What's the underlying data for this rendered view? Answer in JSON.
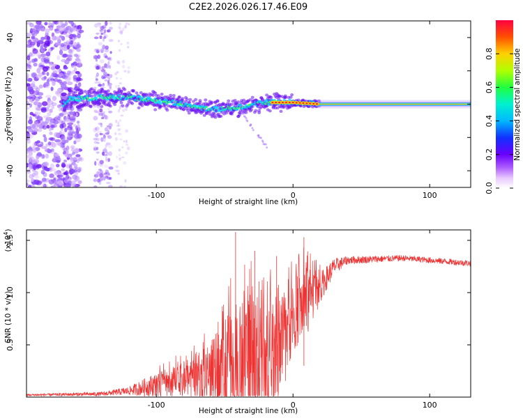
{
  "title": "C2E2.2026.026.17.46.E09",
  "chart_data": [
    {
      "type": "heatmap",
      "xlabel": "Height of straight line (km)",
      "ylabel": "Frequency (Hz)",
      "xlim": [
        -195,
        130
      ],
      "ylim": [
        -50,
        50
      ],
      "xticks": [
        -100,
        0,
        100
      ],
      "yticks": [
        -40,
        -20,
        0,
        20,
        40
      ],
      "xtick_labels": [
        "-100",
        "0",
        "100"
      ],
      "ytick_labels": [
        "-40",
        "-20",
        "0",
        "20",
        "40"
      ],
      "colorbar": {
        "label": "Normalized spectral amplitude",
        "range": [
          0,
          1
        ],
        "ticks": [
          0.0,
          0.2,
          0.4,
          0.6,
          0.8
        ],
        "tick_labels": [
          "0.0",
          "0.2",
          "0.4",
          "0.6",
          "0.8"
        ]
      },
      "ridge": {
        "description_points": [
          {
            "x": -165,
            "freq": 3
          },
          {
            "x": -140,
            "freq": 4
          },
          {
            "x": -120,
            "freq": 4
          },
          {
            "x": -100,
            "freq": 2
          },
          {
            "x": -80,
            "freq": 0
          },
          {
            "x": -60,
            "freq": -3
          },
          {
            "x": -40,
            "freq": -2
          },
          {
            "x": -20,
            "freq": 1
          },
          {
            "x": 0,
            "freq": 1
          },
          {
            "x": 20,
            "freq": 0
          },
          {
            "x": 130,
            "freq": 0
          }
        ]
      }
    },
    {
      "type": "line",
      "xlabel": "Height of straight line (km)",
      "ylabel": "SNR (10 * v/v)",
      "y_multiplier": "(x10",
      "y_multiplier_exp": "4",
      "y_multiplier_close": ")",
      "xlim": [
        -195,
        130
      ],
      "ylim": [
        0,
        1.6
      ],
      "xticks": [
        -100,
        0,
        100
      ],
      "yticks": [
        0.5,
        1.0,
        1.5
      ],
      "xtick_labels": [
        "-100",
        "0",
        "100"
      ],
      "ytick_labels": [
        "0.5",
        "1.0",
        "1.5"
      ],
      "color": "#ee3333",
      "envelope": [
        {
          "x": -195,
          "base": 0.02,
          "amp": 0.01
        },
        {
          "x": -140,
          "base": 0.03,
          "amp": 0.02
        },
        {
          "x": -120,
          "base": 0.06,
          "amp": 0.04
        },
        {
          "x": -100,
          "base": 0.12,
          "amp": 0.12
        },
        {
          "x": -80,
          "base": 0.15,
          "amp": 0.18
        },
        {
          "x": -60,
          "base": 0.2,
          "amp": 0.35
        },
        {
          "x": -40,
          "base": 0.25,
          "amp": 0.7
        },
        {
          "x": -20,
          "base": 0.3,
          "amp": 0.6
        },
        {
          "x": -10,
          "base": 0.5,
          "amp": 0.6
        },
        {
          "x": 0,
          "base": 0.8,
          "amp": 0.35
        },
        {
          "x": 10,
          "base": 0.9,
          "amp": 0.35
        },
        {
          "x": 20,
          "base": 1.05,
          "amp": 0.15
        },
        {
          "x": 30,
          "base": 1.25,
          "amp": 0.08
        },
        {
          "x": 40,
          "base": 1.31,
          "amp": 0.04
        },
        {
          "x": 80,
          "base": 1.33,
          "amp": 0.03
        },
        {
          "x": 130,
          "base": 1.28,
          "amp": 0.03
        }
      ],
      "peaks": [
        {
          "x": -42,
          "y": 1.58
        },
        {
          "x": 8,
          "y": 1.53
        },
        {
          "x": -28,
          "y": 1.4
        },
        {
          "x": -12,
          "y": 1.35
        }
      ]
    }
  ]
}
